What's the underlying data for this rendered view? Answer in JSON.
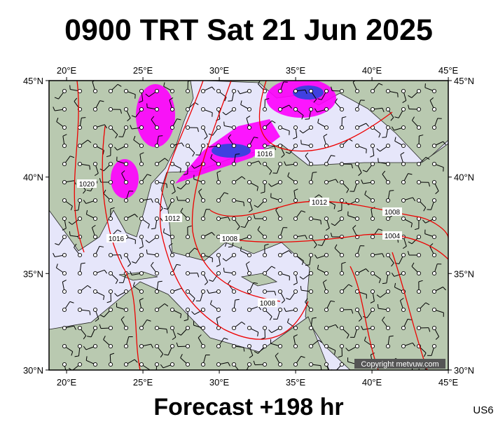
{
  "header": {
    "title": "0900 TRT Sat 21 Jun 2025"
  },
  "map": {
    "lon_ticks": [
      {
        "value": 20,
        "label": "20°E"
      },
      {
        "value": 25,
        "label": "25°E"
      },
      {
        "value": 30,
        "label": "30°E"
      },
      {
        "value": 35,
        "label": "35°E"
      },
      {
        "value": 40,
        "label": "40°E"
      },
      {
        "value": 45,
        "label": "45°E"
      }
    ],
    "lat_ticks": [
      {
        "value": 45,
        "label": "45°N"
      },
      {
        "value": 40,
        "label": "40°N"
      },
      {
        "value": 35,
        "label": "35°N"
      },
      {
        "value": 30,
        "label": "30°N"
      }
    ],
    "isobar_labels": [
      "1020",
      "1016",
      "1012",
      "1016",
      "1008",
      "1012",
      "1008",
      "1004",
      "1008"
    ],
    "copyright": "Copyright metvuw.com"
  },
  "footer": {
    "forecast": "Forecast +198 hr",
    "code": "US6"
  }
}
